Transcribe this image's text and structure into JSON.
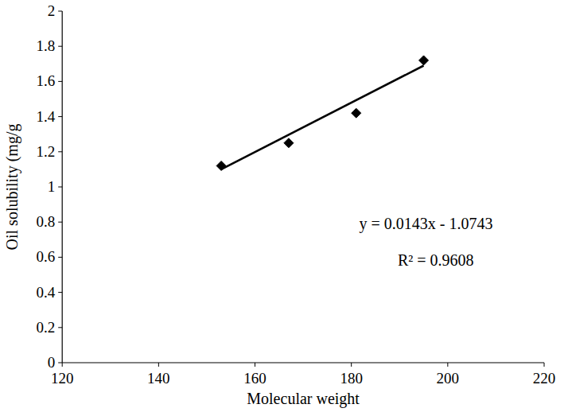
{
  "chart_data": {
    "type": "scatter",
    "x_label": "Molecular weight",
    "y_label": "Oil solubility (mg/g",
    "series": [
      {
        "type": "scatter",
        "marker": "diamond",
        "color": "#000000",
        "x": [
          153,
          167,
          181,
          195
        ],
        "values": [
          1.12,
          1.25,
          1.42,
          1.72
        ]
      },
      {
        "type": "line",
        "line_style": "solid",
        "color": "#000000",
        "x": [
          153,
          195
        ],
        "values": [
          1.1,
          1.69
        ]
      }
    ],
    "annotations": [
      "y = 0.0143x - 1.0743",
      "R² = 0.9608"
    ],
    "xlim": [
      120,
      220
    ],
    "xticks": [
      120,
      140,
      160,
      180,
      200,
      220
    ],
    "ylim": [
      0,
      2
    ],
    "yticks": [
      0,
      0.2,
      0.4,
      0.6,
      0.8,
      1,
      1.2,
      1.4,
      1.6,
      1.8,
      2
    ],
    "grid": false
  }
}
